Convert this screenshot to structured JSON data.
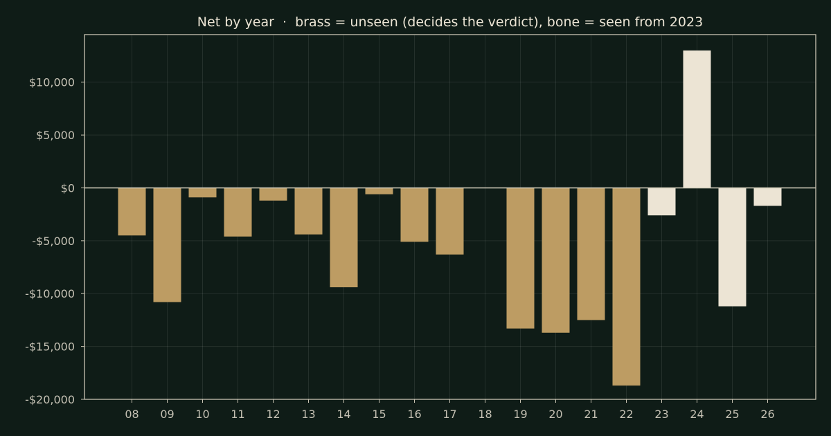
{
  "chart_data": {
    "type": "bar",
    "title": "Net by year  ·  brass = unseen (decides the verdict), bone = seen from 2023",
    "xlabel": "",
    "ylabel": "",
    "categories": [
      "08",
      "09",
      "10",
      "11",
      "12",
      "13",
      "14",
      "15",
      "16",
      "17",
      "18",
      "19",
      "20",
      "21",
      "22",
      "23",
      "24",
      "25",
      "26"
    ],
    "values": [
      -4500,
      -10800,
      -900,
      -4600,
      -1200,
      -4400,
      -9400,
      -600,
      -5100,
      -6300,
      0,
      -13300,
      -13700,
      -12500,
      -18700,
      -2600,
      13000,
      -11200,
      -1700
    ],
    "ylim": [
      -20000,
      14500
    ],
    "yticks": [
      -20000,
      -15000,
      -10000,
      -5000,
      0,
      5000,
      10000
    ],
    "ytick_labels": [
      "-$20,000",
      "-$15,000",
      "-$10,000",
      "-$5,000",
      "$0",
      "$5,000",
      "$10,000"
    ],
    "grid": true,
    "legend": "none",
    "seen_from_index": 15,
    "colors": {
      "unseen": "#bd9c63",
      "seen": "#ece4d4",
      "background": "#0f1c17"
    }
  }
}
